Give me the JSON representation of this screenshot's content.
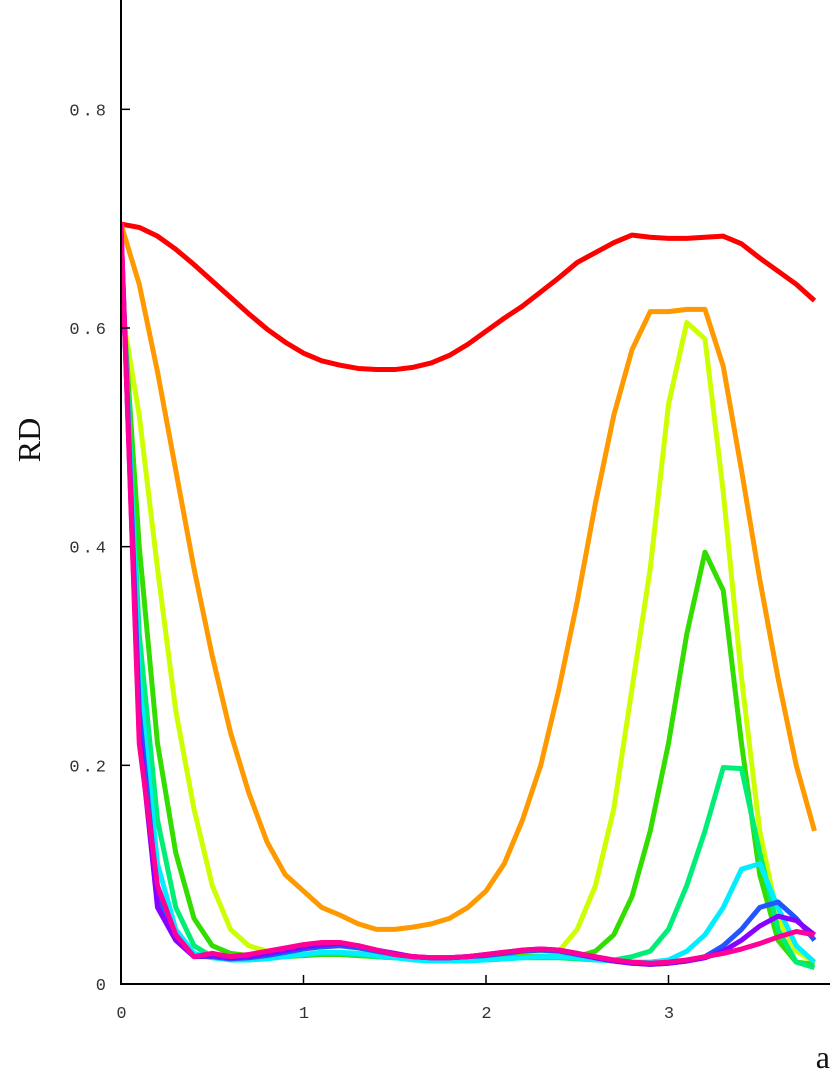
{
  "chart_data": {
    "type": "line",
    "y_label": "RD",
    "x_label": "a",
    "x": [
      0,
      0.1,
      0.2,
      0.3,
      0.4,
      0.5,
      0.6,
      0.7,
      0.8,
      0.9,
      1.0,
      1.1,
      1.2,
      1.3,
      1.4,
      1.5,
      1.6,
      1.7,
      1.8,
      1.9,
      2.0,
      2.1,
      2.2,
      2.3,
      2.4,
      2.5,
      2.6,
      2.7,
      2.8,
      2.9,
      3.0,
      3.1,
      3.2,
      3.3,
      3.4,
      3.5,
      3.6,
      3.7,
      3.8
    ],
    "series": [
      {
        "color": "#ff0000",
        "values": [
          0.695,
          0.692,
          0.684,
          0.672,
          0.658,
          0.643,
          0.628,
          0.613,
          0.599,
          0.587,
          0.577,
          0.57,
          0.566,
          0.563,
          0.562,
          0.562,
          0.564,
          0.568,
          0.575,
          0.585,
          0.597,
          0.609,
          0.62,
          0.633,
          0.646,
          0.66,
          0.669,
          0.678,
          0.685,
          0.683,
          0.682,
          0.682,
          0.683,
          0.684,
          0.677,
          0.664,
          0.652,
          0.64,
          0.625
        ]
      },
      {
        "color": "#ff9900",
        "values": [
          0.695,
          0.64,
          0.56,
          0.47,
          0.38,
          0.3,
          0.23,
          0.175,
          0.13,
          0.1,
          0.085,
          0.07,
          0.063,
          0.055,
          0.05,
          0.05,
          0.052,
          0.055,
          0.06,
          0.07,
          0.085,
          0.11,
          0.15,
          0.2,
          0.27,
          0.35,
          0.44,
          0.52,
          0.58,
          0.615,
          0.615,
          0.617,
          0.617,
          0.565,
          0.47,
          0.37,
          0.28,
          0.2,
          0.14
        ]
      },
      {
        "color": "#ccff00",
        "values": [
          0.62,
          0.52,
          0.38,
          0.25,
          0.16,
          0.09,
          0.05,
          0.035,
          0.03,
          0.028,
          0.027,
          0.027,
          0.027,
          0.026,
          0.025,
          0.024,
          0.023,
          0.023,
          0.023,
          0.023,
          0.024,
          0.025,
          0.026,
          0.027,
          0.03,
          0.05,
          0.09,
          0.16,
          0.27,
          0.38,
          0.53,
          0.605,
          0.59,
          0.45,
          0.28,
          0.14,
          0.06,
          0.03,
          0.02
        ]
      },
      {
        "color": "#33dd00",
        "values": [
          0.65,
          0.4,
          0.22,
          0.12,
          0.06,
          0.035,
          0.028,
          0.026,
          0.025,
          0.025,
          0.026,
          0.027,
          0.027,
          0.026,
          0.025,
          0.024,
          0.023,
          0.022,
          0.022,
          0.022,
          0.023,
          0.024,
          0.025,
          0.025,
          0.025,
          0.025,
          0.03,
          0.045,
          0.08,
          0.14,
          0.22,
          0.32,
          0.395,
          0.36,
          0.22,
          0.1,
          0.04,
          0.02,
          0.018
        ]
      },
      {
        "color": "#00ee77",
        "values": [
          0.67,
          0.32,
          0.15,
          0.07,
          0.035,
          0.025,
          0.023,
          0.023,
          0.024,
          0.025,
          0.027,
          0.028,
          0.028,
          0.027,
          0.025,
          0.024,
          0.023,
          0.022,
          0.022,
          0.022,
          0.022,
          0.023,
          0.024,
          0.024,
          0.024,
          0.023,
          0.022,
          0.022,
          0.025,
          0.03,
          0.05,
          0.09,
          0.14,
          0.198,
          0.197,
          0.12,
          0.05,
          0.02,
          0.015
        ]
      },
      {
        "color": "#00eeff",
        "values": [
          0.68,
          0.28,
          0.11,
          0.05,
          0.028,
          0.024,
          0.022,
          0.022,
          0.023,
          0.025,
          0.027,
          0.029,
          0.029,
          0.028,
          0.026,
          0.024,
          0.022,
          0.021,
          0.021,
          0.021,
          0.022,
          0.023,
          0.024,
          0.025,
          0.025,
          0.024,
          0.022,
          0.021,
          0.02,
          0.02,
          0.022,
          0.03,
          0.045,
          0.07,
          0.105,
          0.11,
          0.07,
          0.035,
          0.02
        ]
      },
      {
        "color": "#2255ff",
        "values": [
          0.69,
          0.25,
          0.08,
          0.045,
          0.025,
          0.025,
          0.023,
          0.024,
          0.026,
          0.029,
          0.032,
          0.034,
          0.035,
          0.033,
          0.03,
          0.027,
          0.025,
          0.024,
          0.024,
          0.025,
          0.026,
          0.028,
          0.03,
          0.031,
          0.03,
          0.027,
          0.024,
          0.021,
          0.019,
          0.018,
          0.019,
          0.021,
          0.025,
          0.035,
          0.05,
          0.07,
          0.075,
          0.06,
          0.04
        ]
      },
      {
        "color": "#8800ff",
        "values": [
          0.69,
          0.23,
          0.07,
          0.04,
          0.025,
          0.026,
          0.024,
          0.025,
          0.028,
          0.031,
          0.034,
          0.036,
          0.037,
          0.035,
          0.031,
          0.028,
          0.025,
          0.024,
          0.024,
          0.025,
          0.027,
          0.029,
          0.031,
          0.032,
          0.031,
          0.028,
          0.024,
          0.021,
          0.019,
          0.018,
          0.019,
          0.021,
          0.024,
          0.03,
          0.04,
          0.053,
          0.062,
          0.058,
          0.045
        ]
      },
      {
        "color": "#ff0099",
        "values": [
          0.695,
          0.22,
          0.09,
          0.045,
          0.025,
          0.028,
          0.025,
          0.027,
          0.03,
          0.033,
          0.036,
          0.038,
          0.038,
          0.035,
          0.031,
          0.027,
          0.025,
          0.024,
          0.024,
          0.025,
          0.027,
          0.029,
          0.031,
          0.032,
          0.031,
          0.028,
          0.025,
          0.022,
          0.02,
          0.019,
          0.02,
          0.022,
          0.025,
          0.028,
          0.032,
          0.037,
          0.043,
          0.048,
          0.045
        ]
      }
    ],
    "xlim": [
      0,
      3.885
    ],
    "xticks": [
      0,
      1,
      2,
      3
    ],
    "ylim": [
      0,
      0.9
    ],
    "yticks": [
      0,
      0.2,
      0.4,
      0.6,
      0.8
    ]
  }
}
